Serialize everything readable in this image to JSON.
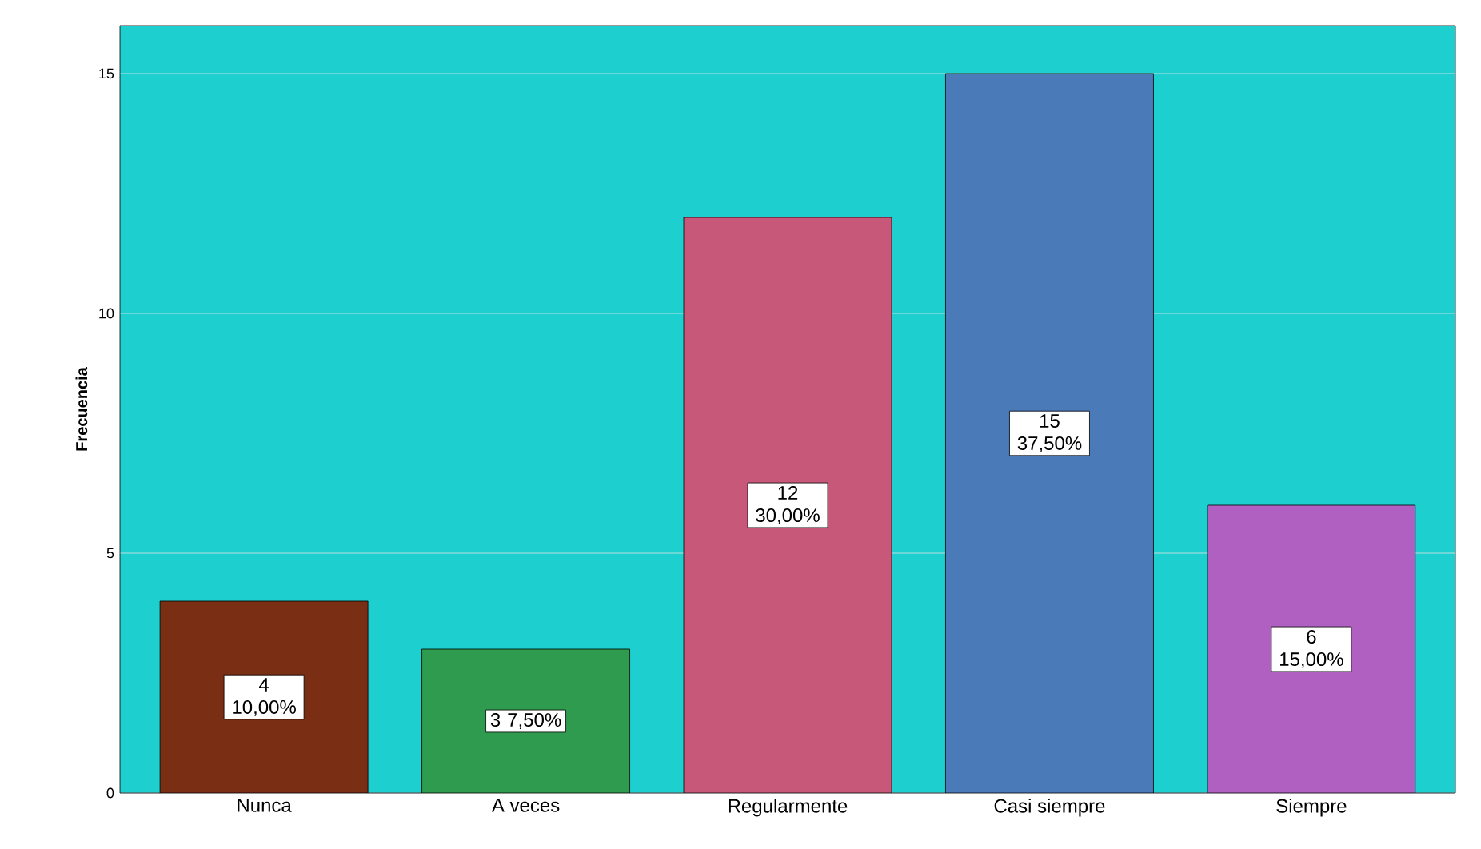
{
  "chart_data": {
    "type": "bar",
    "ylabel": "Frecuencia",
    "categories": [
      "Nunca",
      "A veces",
      "Regularmente",
      "Casi siempre",
      "Siempre"
    ],
    "values": [
      4,
      3,
      12,
      15,
      6
    ],
    "colors": [
      "#7a2e14",
      "#2e9b4e",
      "#c8587a",
      "#4a7ab8",
      "#b060c0"
    ],
    "value_labels": [
      "4 10,00%",
      "3 7,50%",
      "12 30,00%",
      "15 37,50%",
      "6 15,00%"
    ],
    "ylim": [
      0,
      16
    ],
    "yticks": [
      0,
      5,
      10,
      15
    ],
    "grid": "y"
  }
}
